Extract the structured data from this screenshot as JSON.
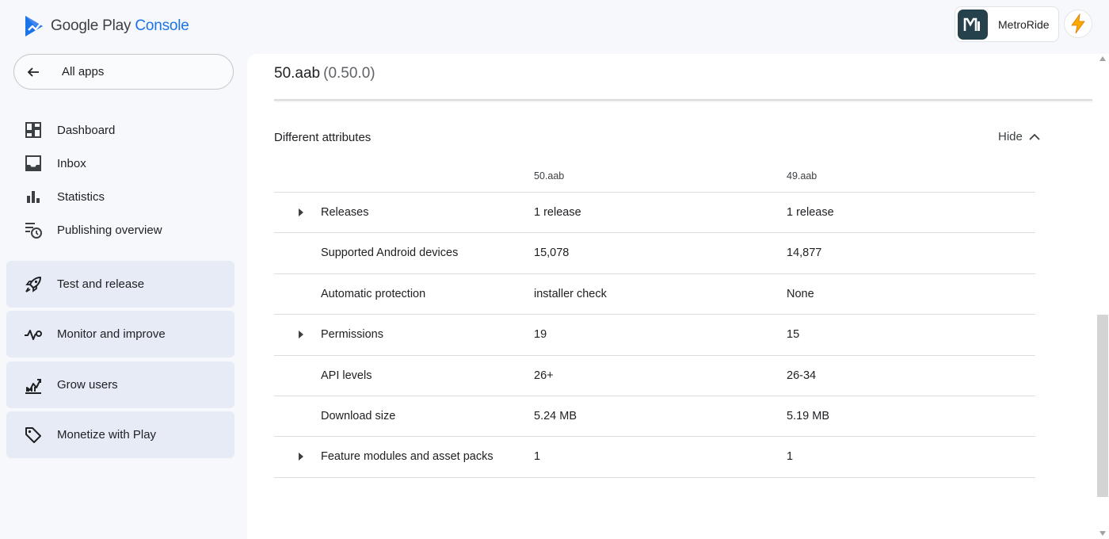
{
  "header": {
    "logo_text": "Google Play",
    "logo_accent": "Console",
    "app_name": "MetroRide",
    "app_icon_text": "M"
  },
  "sidebar": {
    "all_apps_label": "All apps",
    "items": [
      {
        "label": "Dashboard",
        "icon": "dashboard-icon"
      },
      {
        "label": "Inbox",
        "icon": "inbox-icon"
      },
      {
        "label": "Statistics",
        "icon": "statistics-icon"
      },
      {
        "label": "Publishing overview",
        "icon": "publishing-overview-icon"
      }
    ],
    "groups": [
      {
        "label": "Test and release",
        "icon": "rocket-icon"
      },
      {
        "label": "Monitor and improve",
        "icon": "pulse-icon"
      },
      {
        "label": "Grow users",
        "icon": "grow-users-icon"
      },
      {
        "label": "Monetize with Play",
        "icon": "tag-icon"
      }
    ]
  },
  "main": {
    "title": "50.aab",
    "title_version": "(0.50.0)",
    "section_title": "Different attributes",
    "hide_label": "Hide",
    "columns": [
      "50.aab",
      "49.aab"
    ],
    "rows": [
      {
        "label": "Releases",
        "a": "1 release",
        "b": "1 release",
        "expandable": true
      },
      {
        "label": "Supported Android devices",
        "a": "15,078",
        "b": "14,877",
        "expandable": false
      },
      {
        "label": "Automatic protection",
        "a": "installer check",
        "b": "None",
        "expandable": false
      },
      {
        "label": "Permissions",
        "a": "19",
        "b": "15",
        "expandable": true
      },
      {
        "label": "API levels",
        "a": "26+",
        "b": "26-34",
        "expandable": false
      },
      {
        "label": "Download size",
        "a": "5.24 MB",
        "b": "5.19 MB",
        "expandable": false
      },
      {
        "label": "Feature modules and asset packs",
        "a": "1",
        "b": "1",
        "expandable": true
      }
    ]
  },
  "colors": {
    "accent": "#1a73e8",
    "sidebar_group_bg": "#e6ebf5",
    "page_bg": "#f7f8fc",
    "app_icon_bg": "#24414c",
    "bolt": "#f9ab00"
  }
}
